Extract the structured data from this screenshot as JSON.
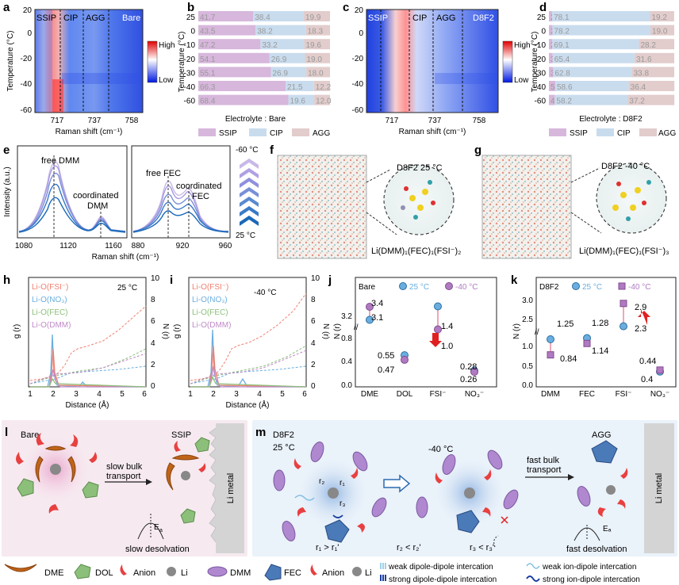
{
  "panels": {
    "a": {
      "letter": "a",
      "regions": [
        "SSIP",
        "CIP",
        "AGG"
      ],
      "tag": "Bare",
      "ylabel": "Temperature (°C)",
      "xlabel": "Raman shift (cm⁻¹)",
      "xticks": [
        "717",
        "737",
        "758"
      ],
      "yticks": [
        "20",
        "0",
        "-20",
        "-40",
        "-60"
      ],
      "cb_high": "High",
      "cb_low": "Low"
    },
    "b": {
      "letter": "b",
      "ylabel": "Temperature (°C)",
      "caption": "Electrolyte : Bare",
      "legend": [
        "SSIP",
        "CIP",
        "AGG"
      ]
    },
    "c": {
      "letter": "c",
      "regions": [
        "SSIP",
        "CIP",
        "AGG"
      ],
      "tag": "D8F2",
      "xlabel": "Raman shift (cm⁻¹)",
      "xticks": [
        "717",
        "737",
        "758"
      ],
      "yticks": [
        "20",
        "0",
        "-20",
        "-40",
        "-60"
      ],
      "cb_high": "High",
      "cb_low": "Low"
    },
    "d": {
      "letter": "d",
      "ylabel": "Temperature (°C)",
      "caption": "Electrolyte : D8F2",
      "legend": [
        "SSIP",
        "CIP",
        "AGG"
      ]
    },
    "e": {
      "letter": "e",
      "ylabel": "Intensity (a.u.)",
      "xlabel": "Raman shift (cm⁻¹)",
      "left_xticks": [
        "1080",
        "1120",
        "1160"
      ],
      "right_xticks": [
        "880",
        "920",
        "960"
      ],
      "ann_free_dmm": "free DMM",
      "ann_coord_dmm_1": "coordinated",
      "ann_coord_dmm_2": "DMM",
      "ann_free_fec": "free FEC",
      "ann_coord_fec_1": "coordinated",
      "ann_coord_fec_2": "FEC",
      "temp_top": "-60 °C",
      "temp_bottom": "25 °C"
    },
    "f": {
      "letter": "f",
      "title": "D8F2   25 °C",
      "formula": "Li(DMM)₁(FEC)₁(FSI⁻)₂"
    },
    "g": {
      "letter": "g",
      "title": "D8F2   -40 °C",
      "formula": "Li(DMM)₁(FEC)₁(FSI⁻)₃"
    },
    "h": {
      "letter": "h",
      "temp": "25 °C",
      "ylabel_left": "g (r)",
      "ylabel_right": "N (r)",
      "xlabel": "Distance (Å)",
      "xticks": [
        "1",
        "2",
        "3",
        "4",
        "5",
        "6"
      ],
      "yticks_right": [
        "0",
        "2",
        "4",
        "6",
        "8",
        "10"
      ],
      "legend": [
        "Li-O(FSI⁻)",
        "Li-O(NO₃)",
        "Li-O(FEC)",
        "Li-O(DMM)"
      ]
    },
    "i": {
      "letter": "i",
      "temp": "-40 °C",
      "ylabel_left": "g (r)",
      "ylabel_right": "N (r)",
      "xlabel": "Distance (Å)",
      "xticks": [
        "1",
        "2",
        "3",
        "4",
        "5",
        "6"
      ],
      "yticks_right": [
        "0",
        "2",
        "4",
        "6",
        "8",
        "10"
      ],
      "legend": [
        "Li-O(FSI⁻)",
        "Li-O(NO₃)",
        "Li-O(FEC)",
        "Li-O(DMM)"
      ]
    },
    "j": {
      "letter": "j",
      "tag": "Bare",
      "leg_25": "25 °C",
      "leg_m40": "-40 °C",
      "ylabel": "N (r)",
      "yticks": [
        "0.0",
        "0.4",
        "0.8",
        "3.2"
      ],
      "cats": [
        "DME",
        "DOL",
        "FSI⁻",
        "NO₃⁻"
      ],
      "labels": [
        "3.4",
        "3.1",
        "0.55",
        "0.47",
        "1.4",
        "1.0",
        "0.28",
        "0.26"
      ]
    },
    "k": {
      "letter": "k",
      "tag": "D8F2",
      "leg_25": "25 °C",
      "leg_m40": "-40 °C",
      "ylabel": "N (r)",
      "yticks": [
        "0.0",
        "0.5",
        "1.0",
        "2.5",
        "3.0"
      ],
      "cats": [
        "DMM",
        "FEC",
        "FSI⁻",
        "NO₃⁻"
      ],
      "labels": [
        "1.25",
        "0.84",
        "1.28",
        "1.14",
        "2.9",
        "2.3",
        "0.44",
        "0.4"
      ]
    },
    "l": {
      "letter": "l",
      "bare": "Bare",
      "ssip": "SSIP",
      "arrow1": "slow bulk",
      "arrow2": "transport",
      "ea": "E",
      "ea_sub": "a",
      "slow": "slow desolvation",
      "li_metal": "Li metal"
    },
    "m": {
      "letter": "m",
      "d8f2": "D8F2",
      "t25": "25 °C",
      "tm40": "-40 °C",
      "agg": "AGG",
      "arrow1": "fast bulk",
      "arrow2": "transport",
      "fast": "fast desolvation",
      "li_metal": "Li metal",
      "r1": "r₁  >  r₁'",
      "r2": "r₂  <  r₂'",
      "r3": "r₃  <  r₃'"
    },
    "legend_bottom": [
      "DME",
      "DOL",
      "Anion",
      "Li",
      "DMM",
      "FEC",
      "Anion",
      "Li"
    ],
    "legend_lines": [
      "weak dipole-dipole intercation",
      "strong dipole-dipole intercation",
      "weak ion-dipole intercation",
      "strong ion-dipole intercation"
    ]
  },
  "colors": {
    "ssip": "#d7b7dc",
    "cip": "#c9dcee",
    "agg": "#e2cccc",
    "fsi": "#f08070",
    "no3": "#6aaee0",
    "fec": "#8cc07a",
    "dmm": "#c08ac8",
    "c25": "#6aaee0",
    "cm40": "#b07ac0",
    "arrow_red": "#e02020"
  },
  "chart_data": [
    {
      "type": "bar",
      "panel": "b",
      "title": "Electrolyte : Bare",
      "orientation": "horizontal-stacked",
      "categories": [
        "25",
        "0",
        "-10",
        "-20",
        "-30",
        "-40",
        "-60"
      ],
      "series": [
        {
          "name": "SSIP",
          "values": [
            41.7,
            43.5,
            47.2,
            54.1,
            55.1,
            66.3,
            68.4
          ]
        },
        {
          "name": "CIP",
          "values": [
            38.4,
            38.2,
            33.2,
            26.9,
            26.9,
            21.5,
            19.6
          ]
        },
        {
          "name": "AGG",
          "values": [
            19.9,
            18.3,
            19.6,
            19.0,
            18.0,
            12.2,
            12.0
          ]
        }
      ]
    },
    {
      "type": "bar",
      "panel": "d",
      "title": "Electrolyte : D8F2",
      "orientation": "horizontal-stacked",
      "categories": [
        "25",
        "0",
        "-10",
        "-20",
        "-30",
        "-40",
        "-60"
      ],
      "series": [
        {
          "name": "SSIP",
          "values": [
            2.6,
            2.8,
            2.7,
            3.0,
            3.4,
            5.1,
            4.7
          ]
        },
        {
          "name": "CIP",
          "values": [
            78.1,
            78.2,
            69.1,
            65.4,
            62.8,
            58.6,
            58.2
          ]
        },
        {
          "name": "AGG",
          "values": [
            19.2,
            19.0,
            28.2,
            31.6,
            33.8,
            36.4,
            37.2
          ]
        }
      ]
    },
    {
      "type": "scatter",
      "panel": "j",
      "categories": [
        "DME",
        "DOL",
        "FSI⁻",
        "NO₃⁻"
      ],
      "series": [
        {
          "name": "25 °C",
          "values": [
            3.1,
            0.55,
            1.4,
            0.28
          ]
        },
        {
          "name": "-40 °C",
          "values": [
            3.4,
            0.47,
            1.0,
            0.26
          ]
        }
      ]
    },
    {
      "type": "scatter",
      "panel": "k",
      "categories": [
        "DMM",
        "FEC",
        "FSI⁻",
        "NO₃⁻"
      ],
      "series": [
        {
          "name": "25 °C",
          "values": [
            1.25,
            1.28,
            2.3,
            0.4
          ]
        },
        {
          "name": "-40 °C",
          "values": [
            0.84,
            1.14,
            2.9,
            0.44
          ]
        }
      ]
    }
  ]
}
